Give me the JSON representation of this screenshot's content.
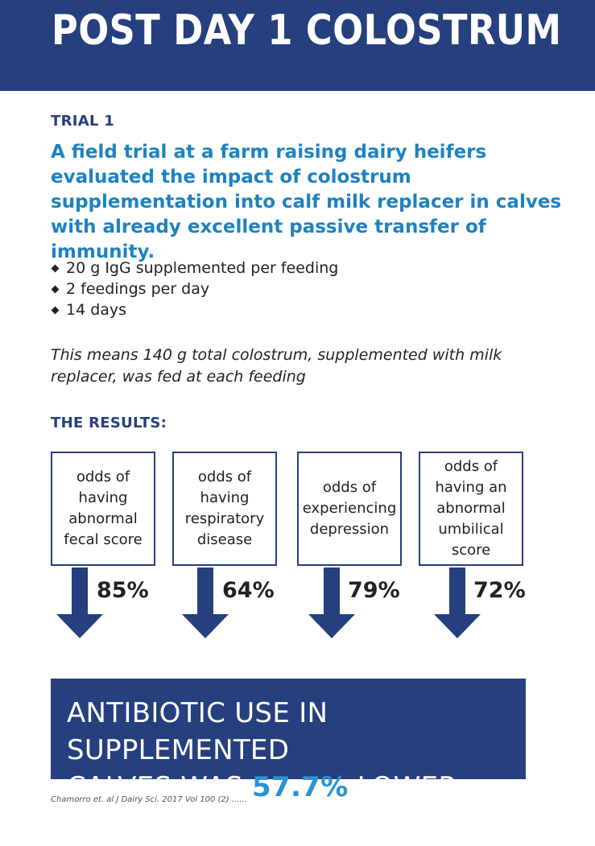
{
  "header": {
    "title": "POST DAY 1 COLOSTRUM"
  },
  "trial": {
    "heading": "TRIAL 1",
    "lead": "A field trial at a farm raising dairy heifers evaluated the impact of colostrum supplementation into calf milk replacer in calves with already excellent passive transfer of immunity.",
    "bullets": [
      "20 g IgG supplemented per feeding",
      "2 feedings per day",
      "14 days"
    ],
    "note": "This means 140 g total colostrum, supplemented with milk replacer, was fed at each feeding"
  },
  "results": {
    "heading": "THE RESULTS:",
    "items": [
      {
        "label": "odds of having abnormal fecal score",
        "value": "85%"
      },
      {
        "label": "odds of having respiratory disease",
        "value": "64%"
      },
      {
        "label": "odds of experiencing depression",
        "value": "79%"
      },
      {
        "label": "odds of having an abnormal umbilical score",
        "value": "72%"
      }
    ]
  },
  "banner": {
    "line1": "ANTIBIOTIC USE IN SUPPLEMENTED",
    "line2_prefix": "CALVES WAS ",
    "highlight": "57.7%",
    "line2_suffix": " LOWER"
  },
  "citation": "Chamorro et. al J Dairy Sci. 2017 Vol 100 (2) ......",
  "colors": {
    "navy": "#263f7e",
    "accent_blue": "#1e82c1",
    "highlight_blue": "#2a93d5"
  }
}
